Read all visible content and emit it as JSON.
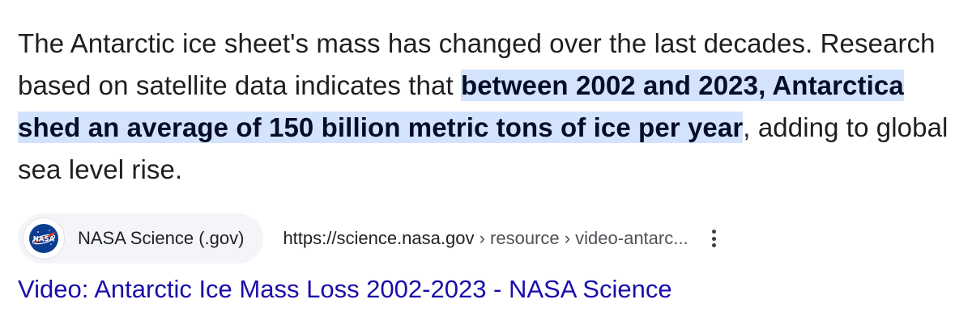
{
  "snippet": {
    "intro": "The Antarctic ice sheet's mass has changed over the last decades. Research based on satellite data indicates that ",
    "highlight": "between 2002 and 2023, Antarctica shed an average of 150 billion metric tons of ice per year",
    "outro": ", adding to global sea level rise."
  },
  "source": {
    "logo_icon": "nasa-logo-icon",
    "name": "NASA Science (.gov)",
    "url_base": "https://science.nasa.gov",
    "url_crumbs": " › resource › video-antarc...",
    "menu_icon": "more-vert-icon"
  },
  "result": {
    "title": "Video: Antarctic Ice Mass Loss 2002-2023 - NASA Science"
  },
  "colors": {
    "highlight": "#d3e3fd",
    "link": "#1a0dab",
    "text": "#1f1f1f"
  }
}
